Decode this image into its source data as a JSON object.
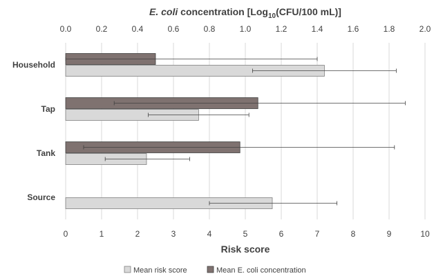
{
  "chart_data": {
    "type": "bar",
    "orientation": "horizontal",
    "categories": [
      "Household",
      "Tap",
      "Tank",
      "Source"
    ],
    "series": [
      {
        "name": "Mean E. coli concentration",
        "axis": "top",
        "color": "#7f7270",
        "values": [
          0.5,
          1.07,
          0.97,
          null
        ],
        "error_low": [
          0.5,
          0.8,
          0.87,
          null
        ],
        "error_high": [
          0.9,
          0.82,
          0.86,
          null
        ]
      },
      {
        "name": "Mean risk score",
        "axis": "bottom",
        "color": "#d9d9d9",
        "values": [
          7.2,
          3.7,
          2.25,
          5.75
        ],
        "error_low": [
          2.0,
          1.4,
          1.15,
          1.75
        ],
        "error_high": [
          2.0,
          1.4,
          1.2,
          1.8
        ]
      }
    ],
    "x_bottom": {
      "label": "Risk score",
      "range": [
        0,
        10
      ],
      "ticks": [
        "0",
        "1",
        "2",
        "3",
        "4",
        "5",
        "6",
        "7",
        "8",
        "9",
        "10"
      ]
    },
    "x_top": {
      "label_italic": "E. coli",
      "label_main": " concentration [Log",
      "label_sub": "10",
      "label_end": "(CFU/100 mL)]",
      "range": [
        0,
        2
      ],
      "ticks": [
        "0.0",
        "0.2",
        "0.4",
        "0.6",
        "0.8",
        "1.0",
        "1.2",
        "1.4",
        "1.6",
        "1.8",
        "2.0"
      ]
    },
    "grid": true,
    "legend_position": "bottom"
  }
}
